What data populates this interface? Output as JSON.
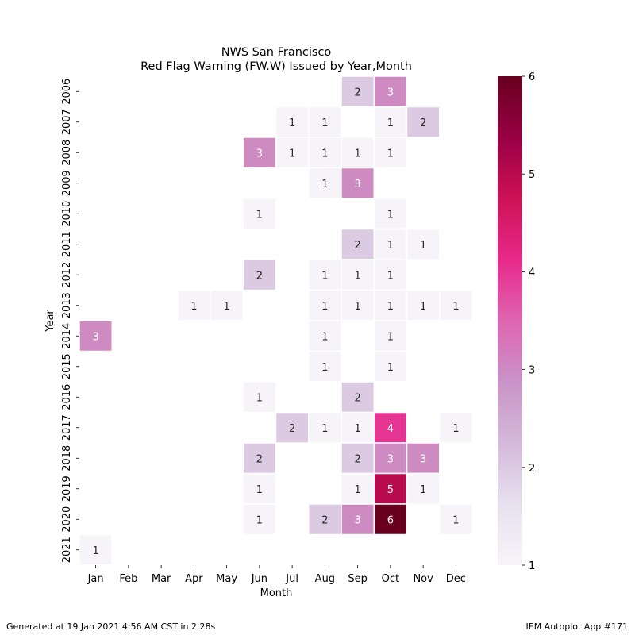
{
  "chart_data": {
    "type": "heatmap",
    "title_line1": "NWS San Francisco",
    "title_line2": "Red Flag Warning (FW.W) Issued by Year,Month",
    "xlabel": "Month",
    "ylabel": "Year",
    "months": [
      "Jan",
      "Feb",
      "Mar",
      "Apr",
      "May",
      "Jun",
      "Jul",
      "Aug",
      "Sep",
      "Oct",
      "Nov",
      "Dec"
    ],
    "years": [
      "2006",
      "2007",
      "2008",
      "2009",
      "2010",
      "2011",
      "2012",
      "2013",
      "2014",
      "2015",
      "2016",
      "2017",
      "2018",
      "2019",
      "2020",
      "2021"
    ],
    "values": [
      [
        null,
        null,
        null,
        null,
        null,
        null,
        null,
        null,
        2,
        3,
        null,
        null
      ],
      [
        null,
        null,
        null,
        null,
        null,
        null,
        1,
        1,
        null,
        1,
        2,
        null
      ],
      [
        null,
        null,
        null,
        null,
        null,
        3,
        1,
        1,
        1,
        1,
        null,
        null
      ],
      [
        null,
        null,
        null,
        null,
        null,
        null,
        null,
        1,
        3,
        null,
        null,
        null
      ],
      [
        null,
        null,
        null,
        null,
        null,
        1,
        null,
        null,
        null,
        1,
        null,
        null
      ],
      [
        null,
        null,
        null,
        null,
        null,
        null,
        null,
        null,
        2,
        1,
        1,
        null
      ],
      [
        null,
        null,
        null,
        null,
        null,
        2,
        null,
        1,
        1,
        1,
        null,
        null
      ],
      [
        null,
        null,
        null,
        1,
        1,
        null,
        null,
        1,
        1,
        1,
        1,
        1
      ],
      [
        3,
        null,
        null,
        null,
        null,
        null,
        null,
        1,
        null,
        1,
        null,
        null
      ],
      [
        null,
        null,
        null,
        null,
        null,
        null,
        null,
        1,
        null,
        1,
        null,
        null
      ],
      [
        null,
        null,
        null,
        null,
        null,
        1,
        null,
        null,
        2,
        null,
        null,
        null
      ],
      [
        null,
        null,
        null,
        null,
        null,
        null,
        2,
        1,
        1,
        4,
        null,
        1
      ],
      [
        null,
        null,
        null,
        null,
        null,
        2,
        null,
        null,
        2,
        3,
        3,
        null
      ],
      [
        null,
        null,
        null,
        null,
        null,
        1,
        null,
        null,
        1,
        5,
        1,
        null
      ],
      [
        null,
        null,
        null,
        null,
        null,
        1,
        null,
        2,
        3,
        6,
        null,
        1
      ],
      [
        1,
        null,
        null,
        null,
        null,
        null,
        null,
        null,
        null,
        null,
        null,
        null
      ]
    ],
    "colorbar": {
      "min": 1,
      "max": 6,
      "ticks": [
        "1",
        "2",
        "3",
        "4",
        "5",
        "6"
      ],
      "colormap": "PuRd"
    }
  },
  "footer": {
    "left": "Generated at 19 Jan 2021 4:56 AM CST in 2.28s",
    "right": "IEM Autoplot App #171"
  }
}
